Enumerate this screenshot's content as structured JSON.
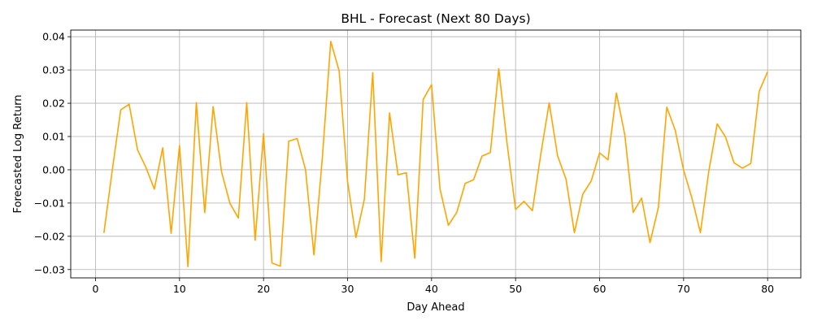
{
  "chart_data": {
    "type": "line",
    "title": "BHL - Forecast (Next 80 Days)",
    "xlabel": "Day Ahead",
    "ylabel": "Forecasted Log Return",
    "xlim": [
      -2.95,
      83.95
    ],
    "ylim": [
      -0.0325,
      0.042
    ],
    "xticks": [
      0,
      10,
      20,
      30,
      40,
      50,
      60,
      70,
      80
    ],
    "yticks": [
      -0.03,
      -0.02,
      -0.01,
      0.0,
      0.01,
      0.02,
      0.03,
      0.04
    ],
    "ytick_labels": [
      "−0.03",
      "−0.02",
      "−0.01",
      "0.00",
      "0.01",
      "0.02",
      "0.03",
      "0.04"
    ],
    "grid": true,
    "series": [
      {
        "color": "#ffa500",
        "x": [
          1,
          2,
          3,
          4,
          5,
          6,
          7,
          8,
          9,
          10,
          11,
          12,
          13,
          14,
          15,
          16,
          17,
          18,
          19,
          20,
          21,
          22,
          23,
          24,
          25,
          26,
          27,
          28,
          29,
          30,
          31,
          32,
          33,
          34,
          35,
          36,
          37,
          38,
          39,
          40,
          41,
          42,
          43,
          44,
          45,
          46,
          47,
          48,
          49,
          50,
          51,
          52,
          53,
          54,
          55,
          56,
          57,
          58,
          59,
          60,
          61,
          62,
          63,
          64,
          65,
          66,
          67,
          68,
          69,
          70,
          71,
          72,
          73,
          74,
          75,
          76,
          77,
          78,
          79,
          80
        ],
        "y": [
          -0.019,
          0.0,
          0.018,
          0.0197,
          0.006,
          0.0007,
          -0.0058,
          0.0066,
          -0.0191,
          0.0073,
          -0.0291,
          0.0202,
          -0.0129,
          0.019,
          -0.0006,
          -0.0101,
          -0.0145,
          0.0202,
          -0.0212,
          0.0109,
          -0.028,
          -0.029,
          0.0086,
          0.0094,
          0.0,
          -0.0256,
          0.0036,
          0.0386,
          0.0297,
          -0.0035,
          -0.0204,
          -0.0089,
          0.0292,
          -0.0276,
          0.0171,
          -0.0015,
          -0.0009,
          -0.0266,
          0.0211,
          0.0256,
          -0.0057,
          -0.0167,
          -0.0128,
          -0.0041,
          -0.003,
          0.0041,
          0.0052,
          0.0304,
          0.0076,
          -0.0119,
          -0.0095,
          -0.0123,
          0.0047,
          0.0201,
          0.0042,
          -0.0028,
          -0.0189,
          -0.0073,
          -0.0034,
          0.0051,
          0.003,
          0.0231,
          0.0105,
          -0.0128,
          -0.0085,
          -0.0219,
          -0.0113,
          0.0188,
          0.0119,
          -0.0001,
          -0.0086,
          -0.0189,
          -0.0004,
          0.0138,
          0.0098,
          0.0021,
          0.0005,
          0.0019,
          0.0236,
          0.0295
        ]
      }
    ]
  }
}
